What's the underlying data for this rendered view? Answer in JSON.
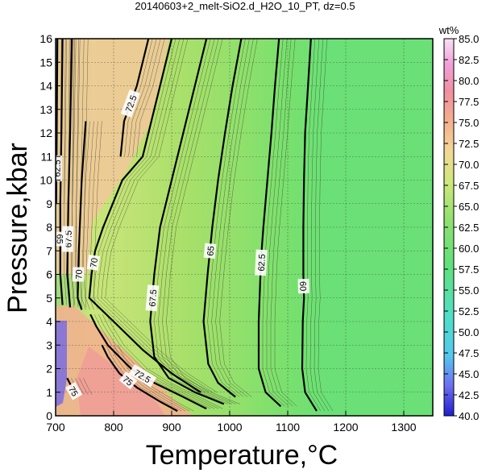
{
  "chart_data": {
    "type": "heatmap",
    "title": "20140603+2_melt-SiO2.d_H2O_10_PT, dz=0.5",
    "xlabel": "Temperature,°C",
    "ylabel": "Pressure,kbar",
    "xlim": [
      700,
      1350
    ],
    "ylim": [
      0,
      16
    ],
    "x_ticks": [
      "700",
      "800",
      "900",
      "1000",
      "1100",
      "1200",
      "1300"
    ],
    "y_ticks": [
      "0",
      "1",
      "2",
      "3",
      "4",
      "5",
      "6",
      "7",
      "8",
      "9",
      "10",
      "11",
      "12",
      "13",
      "14",
      "15",
      "16"
    ],
    "grid": true,
    "colorbar": {
      "unit": "wt%",
      "min": 40.0,
      "max": 85.0,
      "ticks": [
        "40.0",
        "42.5",
        "45.0",
        "47.5",
        "50.0",
        "52.5",
        "55.0",
        "57.5",
        "60.0",
        "62.5",
        "65.0",
        "67.5",
        "70.0",
        "72.5",
        "75.0",
        "77.5",
        "80.0",
        "82.5",
        "85.0"
      ]
    },
    "contours": [
      {
        "level": "60",
        "points": [
          [
            1140,
            16
          ],
          [
            1135,
            14
          ],
          [
            1130,
            12
          ],
          [
            1128,
            10
          ],
          [
            1127,
            8
          ],
          [
            1127,
            6
          ],
          [
            1128,
            5
          ],
          [
            1126,
            4
          ],
          [
            1125,
            2
          ],
          [
            1130,
            1
          ],
          [
            1150,
            0.2
          ]
        ]
      },
      {
        "level": "62.5",
        "points": [
          [
            1085,
            16
          ],
          [
            1078,
            14
          ],
          [
            1072,
            12
          ],
          [
            1065,
            10
          ],
          [
            1058,
            8
          ],
          [
            1055,
            7
          ],
          [
            1053,
            6
          ],
          [
            1050,
            4
          ],
          [
            1050,
            2
          ],
          [
            1062,
            1
          ],
          [
            1088,
            0.4
          ]
        ]
      },
      {
        "level": "65",
        "points": [
          [
            1020,
            16
          ],
          [
            1005,
            14
          ],
          [
            992,
            12
          ],
          [
            980,
            10
          ],
          [
            970,
            8
          ],
          [
            962,
            6
          ],
          [
            955,
            4
          ],
          [
            963,
            2.2
          ],
          [
            980,
            1.4
          ],
          [
            1010,
            0.8
          ]
        ]
      },
      {
        "level": "67.5",
        "points": [
          [
            960,
            16
          ],
          [
            940,
            14
          ],
          [
            920,
            12
          ],
          [
            900,
            10
          ],
          [
            880,
            8
          ],
          [
            870,
            6
          ],
          [
            863,
            4
          ],
          [
            870,
            2.5
          ],
          [
            895,
            1.6
          ],
          [
            940,
            1.0
          ],
          [
            990,
            0.5
          ]
        ]
      },
      {
        "level": "70",
        "points": [
          [
            900,
            16
          ],
          [
            880,
            14
          ],
          [
            865,
            12.5
          ],
          [
            850,
            11
          ],
          [
            815,
            10
          ],
          [
            782,
            8
          ],
          [
            768,
            7
          ],
          [
            762,
            6
          ],
          [
            758,
            5
          ],
          [
            800,
            4
          ],
          [
            850,
            2.8
          ],
          [
            900,
            1.8
          ],
          [
            950,
            1.0
          ]
        ]
      },
      {
        "level": "72.5",
        "points": [
          [
            860,
            16
          ],
          [
            840,
            14
          ],
          [
            818,
            12.5
          ],
          [
            812,
            11
          ]
        ]
      },
      {
        "level": "70",
        "points": [
          [
            752,
            12.5
          ],
          [
            745,
            10
          ],
          [
            740,
            7
          ],
          [
            738,
            5
          ],
          [
            745,
            4.5
          ]
        ]
      },
      {
        "level": "67.5",
        "points": [
          [
            728,
            16
          ],
          [
            725,
            12
          ],
          [
            722,
            9
          ],
          [
            720,
            6
          ],
          [
            725,
            4.6
          ]
        ]
      },
      {
        "level": "65",
        "points": [
          [
            712,
            16
          ],
          [
            710,
            12
          ],
          [
            708,
            9
          ],
          [
            708,
            6
          ],
          [
            712,
            4.7
          ]
        ]
      },
      {
        "level": "62.5",
        "points": [
          [
            703,
            16
          ],
          [
            702,
            12
          ],
          [
            701,
            9
          ]
        ]
      },
      {
        "level": "72.5",
        "points": [
          [
            760,
            4.3
          ],
          [
            770,
            3.8
          ],
          [
            790,
            3.0
          ],
          [
            830,
            2.0
          ],
          [
            870,
            1.4
          ],
          [
            920,
            0.8
          ],
          [
            960,
            0.3
          ]
        ]
      },
      {
        "level": "75",
        "points": [
          [
            780,
            3.0
          ],
          [
            790,
            2.5
          ],
          [
            810,
            1.8
          ],
          [
            840,
            1.2
          ],
          [
            880,
            0.6
          ],
          [
            910,
            0.2
          ]
        ]
      },
      {
        "level": "75",
        "points": [
          [
            720,
            1.6
          ],
          [
            728,
            1.2
          ],
          [
            735,
            0.9
          ]
        ]
      }
    ]
  }
}
